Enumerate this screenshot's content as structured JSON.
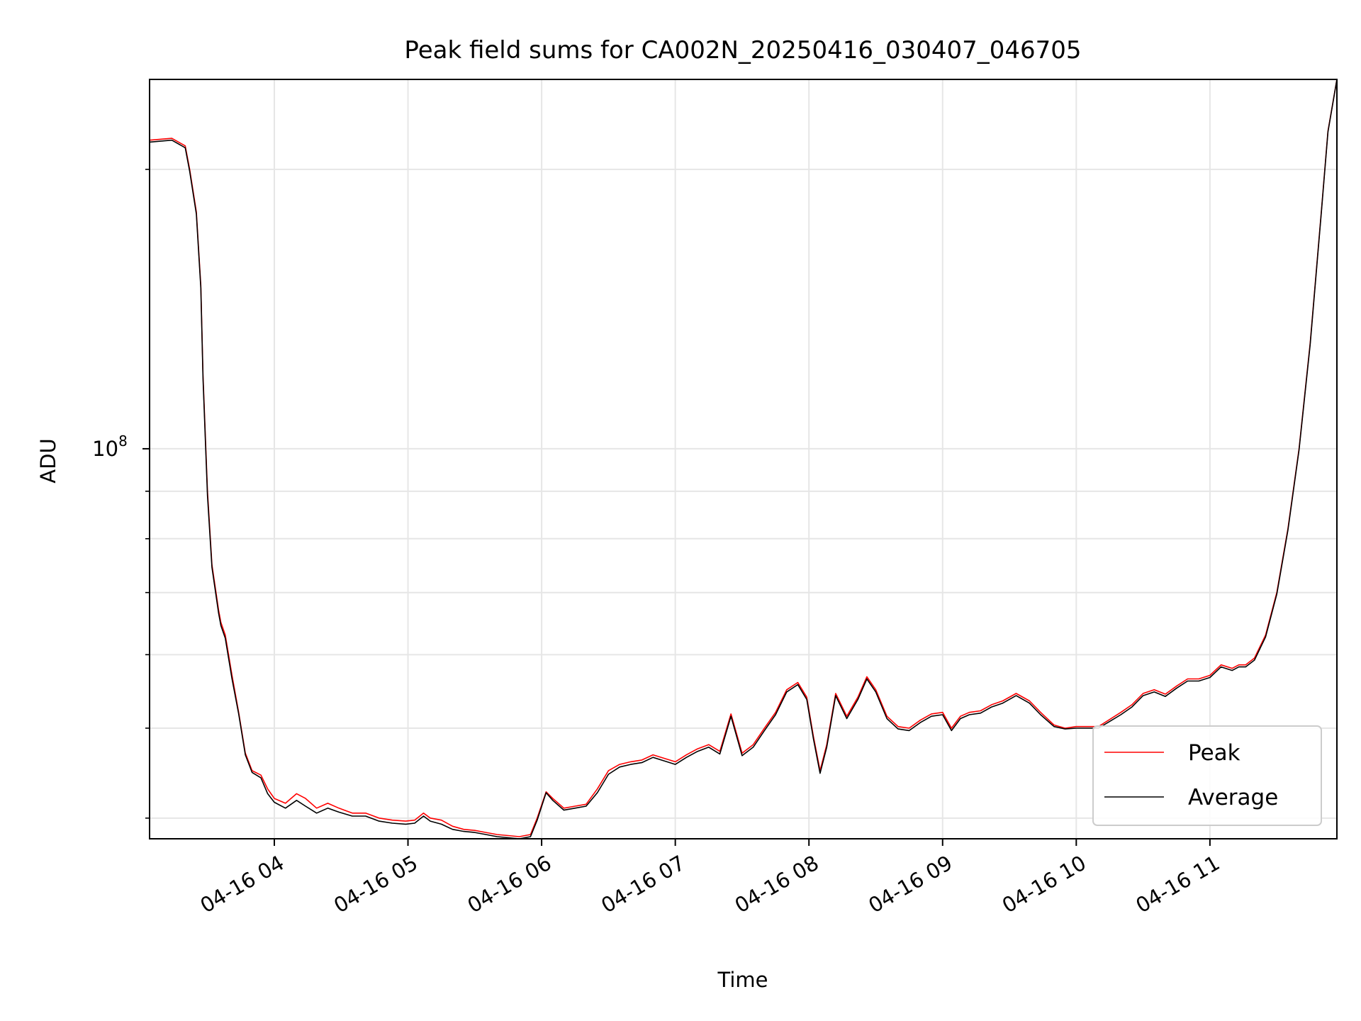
{
  "chart_data": {
    "type": "line",
    "title": "Peak field sums for CA002N_20250416_030407_046705",
    "xlabel": "Time",
    "ylabel": "ADU",
    "y_scale": "log",
    "grid": true,
    "legend_position": "lower-right",
    "xlim": [
      "2025-04-16 03:04",
      "2025-04-16 11:57"
    ],
    "ylim": [
      38000000,
      250000000
    ],
    "x_ticks": [
      {
        "t": "2025-04-16 04:00",
        "label": "04-16 04"
      },
      {
        "t": "2025-04-16 05:00",
        "label": "04-16 05"
      },
      {
        "t": "2025-04-16 06:00",
        "label": "04-16 06"
      },
      {
        "t": "2025-04-16 07:00",
        "label": "04-16 07"
      },
      {
        "t": "2025-04-16 08:00",
        "label": "04-16 08"
      },
      {
        "t": "2025-04-16 09:00",
        "label": "04-16 09"
      },
      {
        "t": "2025-04-16 10:00",
        "label": "04-16 10"
      },
      {
        "t": "2025-04-16 11:00",
        "label": "04-16 11"
      }
    ],
    "y_major_ticks": [
      {
        "value": 100000000,
        "base": "10",
        "exp": "8"
      }
    ],
    "y_minor_ticks": [
      40000000,
      50000000,
      60000000,
      70000000,
      80000000,
      90000000,
      200000000
    ],
    "series": [
      {
        "name": "Peak",
        "color": "#ff0000",
        "x": [
          "2025-04-16 03:04",
          "2025-04-16 03:14",
          "2025-04-16 03:20",
          "2025-04-16 03:22",
          "2025-04-16 03:25",
          "2025-04-16 03:27",
          "2025-04-16 03:28",
          "2025-04-16 03:30",
          "2025-04-16 03:32",
          "2025-04-16 03:35",
          "2025-04-16 03:36",
          "2025-04-16 03:38",
          "2025-04-16 03:41",
          "2025-04-16 03:44",
          "2025-04-16 03:47",
          "2025-04-16 03:50",
          "2025-04-16 03:54",
          "2025-04-16 03:57",
          "2025-04-16 04:00",
          "2025-04-16 04:05",
          "2025-04-16 04:10",
          "2025-04-16 04:14",
          "2025-04-16 04:19",
          "2025-04-16 04:24",
          "2025-04-16 04:29",
          "2025-04-16 04:35",
          "2025-04-16 04:41",
          "2025-04-16 04:47",
          "2025-04-16 04:53",
          "2025-04-16 04:59",
          "2025-04-16 05:03",
          "2025-04-16 05:07",
          "2025-04-16 05:10",
          "2025-04-16 05:15",
          "2025-04-16 05:20",
          "2025-04-16 05:25",
          "2025-04-16 05:30",
          "2025-04-16 05:35",
          "2025-04-16 05:40",
          "2025-04-16 05:45",
          "2025-04-16 05:50",
          "2025-04-16 05:55",
          "2025-04-16 05:58",
          "2025-04-16 06:02",
          "2025-04-16 06:05",
          "2025-04-16 06:10",
          "2025-04-16 06:15",
          "2025-04-16 06:20",
          "2025-04-16 06:25",
          "2025-04-16 06:30",
          "2025-04-16 06:35",
          "2025-04-16 06:40",
          "2025-04-16 06:45",
          "2025-04-16 06:50",
          "2025-04-16 06:55",
          "2025-04-16 07:00",
          "2025-04-16 07:05",
          "2025-04-16 07:10",
          "2025-04-16 07:15",
          "2025-04-16 07:20",
          "2025-04-16 07:25",
          "2025-04-16 07:30",
          "2025-04-16 07:35",
          "2025-04-16 07:40",
          "2025-04-16 07:45",
          "2025-04-16 07:50",
          "2025-04-16 07:55",
          "2025-04-16 07:59",
          "2025-04-16 08:02",
          "2025-04-16 08:05",
          "2025-04-16 08:08",
          "2025-04-16 08:12",
          "2025-04-16 08:17",
          "2025-04-16 08:22",
          "2025-04-16 08:26",
          "2025-04-16 08:30",
          "2025-04-16 08:35",
          "2025-04-16 08:40",
          "2025-04-16 08:45",
          "2025-04-16 08:50",
          "2025-04-16 08:55",
          "2025-04-16 09:00",
          "2025-04-16 09:04",
          "2025-04-16 09:08",
          "2025-04-16 09:12",
          "2025-04-16 09:17",
          "2025-04-16 09:22",
          "2025-04-16 09:27",
          "2025-04-16 09:33",
          "2025-04-16 09:39",
          "2025-04-16 09:44",
          "2025-04-16 09:50",
          "2025-04-16 09:55",
          "2025-04-16 10:00",
          "2025-04-16 10:10",
          "2025-04-16 10:20",
          "2025-04-16 10:25",
          "2025-04-16 10:30",
          "2025-04-16 10:35",
          "2025-04-16 10:40",
          "2025-04-16 10:45",
          "2025-04-16 10:50",
          "2025-04-16 10:55",
          "2025-04-16 11:00",
          "2025-04-16 11:05",
          "2025-04-16 11:10",
          "2025-04-16 11:13",
          "2025-04-16 11:16",
          "2025-04-16 11:20",
          "2025-04-16 11:25",
          "2025-04-16 11:30",
          "2025-04-16 11:35",
          "2025-04-16 11:40",
          "2025-04-16 11:45",
          "2025-04-16 11:50",
          "2025-04-16 11:53",
          "2025-04-16 11:57"
        ],
        "values": [
          215000000,
          216000000,
          212000000,
          200000000,
          180000000,
          150000000,
          120000000,
          90000000,
          75000000,
          67000000,
          65000000,
          63000000,
          57000000,
          52000000,
          47000000,
          45000000,
          44500000,
          43000000,
          42000000,
          41500000,
          42500000,
          42000000,
          41000000,
          41500000,
          41000000,
          40500000,
          40500000,
          40000000,
          39800000,
          39700000,
          39800000,
          40500000,
          40000000,
          39800000,
          39200000,
          38900000,
          38800000,
          38600000,
          38400000,
          38300000,
          38200000,
          38400000,
          40000000,
          42700000,
          42000000,
          41000000,
          41200000,
          41400000,
          43000000,
          45000000,
          45700000,
          46000000,
          46200000,
          46800000,
          46400000,
          46000000,
          46800000,
          47500000,
          48000000,
          47200000,
          51800000,
          47000000,
          48000000,
          50000000,
          52000000,
          55000000,
          56000000,
          54000000,
          49000000,
          45000000,
          48000000,
          54500000,
          51500000,
          54000000,
          56800000,
          55000000,
          51500000,
          50200000,
          50000000,
          51000000,
          51800000,
          52000000,
          50000000,
          51500000,
          52000000,
          52200000,
          53000000,
          53500000,
          54500000,
          53500000,
          52000000,
          50400000,
          50000000,
          50200000,
          50200000,
          52000000,
          53000000,
          54500000,
          55000000,
          54400000,
          55500000,
          56500000,
          56500000,
          57000000,
          58500000,
          58000000,
          58500000,
          58500000,
          59500000,
          63000000,
          70000000,
          82000000,
          100000000,
          130000000,
          180000000,
          220000000,
          250000000
        ]
      },
      {
        "name": "Average",
        "color": "#000000",
        "x": [
          "2025-04-16 03:04",
          "2025-04-16 03:14",
          "2025-04-16 03:20",
          "2025-04-16 03:22",
          "2025-04-16 03:25",
          "2025-04-16 03:27",
          "2025-04-16 03:28",
          "2025-04-16 03:30",
          "2025-04-16 03:32",
          "2025-04-16 03:35",
          "2025-04-16 03:36",
          "2025-04-16 03:38",
          "2025-04-16 03:41",
          "2025-04-16 03:44",
          "2025-04-16 03:47",
          "2025-04-16 03:50",
          "2025-04-16 03:54",
          "2025-04-16 03:57",
          "2025-04-16 04:00",
          "2025-04-16 04:05",
          "2025-04-16 04:10",
          "2025-04-16 04:14",
          "2025-04-16 04:19",
          "2025-04-16 04:24",
          "2025-04-16 04:29",
          "2025-04-16 04:35",
          "2025-04-16 04:41",
          "2025-04-16 04:47",
          "2025-04-16 04:53",
          "2025-04-16 04:59",
          "2025-04-16 05:03",
          "2025-04-16 05:07",
          "2025-04-16 05:10",
          "2025-04-16 05:15",
          "2025-04-16 05:20",
          "2025-04-16 05:25",
          "2025-04-16 05:30",
          "2025-04-16 05:35",
          "2025-04-16 05:40",
          "2025-04-16 05:45",
          "2025-04-16 05:50",
          "2025-04-16 05:55",
          "2025-04-16 05:58",
          "2025-04-16 06:02",
          "2025-04-16 06:05",
          "2025-04-16 06:10",
          "2025-04-16 06:15",
          "2025-04-16 06:20",
          "2025-04-16 06:25",
          "2025-04-16 06:30",
          "2025-04-16 06:35",
          "2025-04-16 06:40",
          "2025-04-16 06:45",
          "2025-04-16 06:50",
          "2025-04-16 06:55",
          "2025-04-16 07:00",
          "2025-04-16 07:05",
          "2025-04-16 07:10",
          "2025-04-16 07:15",
          "2025-04-16 07:20",
          "2025-04-16 07:25",
          "2025-04-16 07:30",
          "2025-04-16 07:35",
          "2025-04-16 07:40",
          "2025-04-16 07:45",
          "2025-04-16 07:50",
          "2025-04-16 07:55",
          "2025-04-16 07:59",
          "2025-04-16 08:02",
          "2025-04-16 08:05",
          "2025-04-16 08:08",
          "2025-04-16 08:12",
          "2025-04-16 08:17",
          "2025-04-16 08:22",
          "2025-04-16 08:26",
          "2025-04-16 08:30",
          "2025-04-16 08:35",
          "2025-04-16 08:40",
          "2025-04-16 08:45",
          "2025-04-16 08:50",
          "2025-04-16 08:55",
          "2025-04-16 09:00",
          "2025-04-16 09:04",
          "2025-04-16 09:08",
          "2025-04-16 09:12",
          "2025-04-16 09:17",
          "2025-04-16 09:22",
          "2025-04-16 09:27",
          "2025-04-16 09:33",
          "2025-04-16 09:39",
          "2025-04-16 09:44",
          "2025-04-16 09:50",
          "2025-04-16 09:55",
          "2025-04-16 10:00",
          "2025-04-16 10:10",
          "2025-04-16 10:20",
          "2025-04-16 10:25",
          "2025-04-16 10:30",
          "2025-04-16 10:35",
          "2025-04-16 10:40",
          "2025-04-16 10:45",
          "2025-04-16 10:50",
          "2025-04-16 10:55",
          "2025-04-16 11:00",
          "2025-04-16 11:05",
          "2025-04-16 11:10",
          "2025-04-16 11:13",
          "2025-04-16 11:16",
          "2025-04-16 11:20",
          "2025-04-16 11:25",
          "2025-04-16 11:30",
          "2025-04-16 11:35",
          "2025-04-16 11:40",
          "2025-04-16 11:45",
          "2025-04-16 11:50",
          "2025-04-16 11:53",
          "2025-04-16 11:57"
        ],
        "values": [
          214000000,
          215000000,
          211000000,
          199000000,
          179000000,
          149000000,
          119000000,
          89000000,
          74500000,
          66500000,
          64500000,
          62500000,
          56500000,
          51800000,
          46800000,
          44800000,
          44200000,
          42500000,
          41600000,
          41000000,
          41800000,
          41200000,
          40500000,
          41000000,
          40600000,
          40200000,
          40200000,
          39700000,
          39500000,
          39400000,
          39500000,
          40200000,
          39700000,
          39400000,
          38900000,
          38700000,
          38600000,
          38400000,
          38200000,
          38100000,
          38000000,
          38200000,
          39800000,
          42600000,
          41800000,
          40800000,
          41000000,
          41200000,
          42600000,
          44600000,
          45400000,
          45700000,
          45900000,
          46500000,
          46100000,
          45700000,
          46500000,
          47200000,
          47700000,
          46900000,
          51500000,
          46700000,
          47700000,
          49700000,
          51700000,
          54700000,
          55700000,
          53700000,
          48700000,
          44700000,
          47700000,
          54200000,
          51200000,
          53700000,
          56500000,
          54700000,
          51200000,
          49900000,
          49700000,
          50700000,
          51500000,
          51700000,
          49700000,
          51200000,
          51700000,
          51900000,
          52700000,
          53200000,
          54200000,
          53200000,
          51700000,
          50200000,
          49900000,
          50000000,
          50000000,
          51700000,
          52700000,
          54200000,
          54700000,
          54100000,
          55200000,
          56200000,
          56200000,
          56700000,
          58200000,
          57700000,
          58200000,
          58200000,
          59200000,
          62700000,
          69700000,
          81700000,
          99700000,
          129500000,
          179500000,
          219500000,
          250000000
        ]
      }
    ]
  }
}
